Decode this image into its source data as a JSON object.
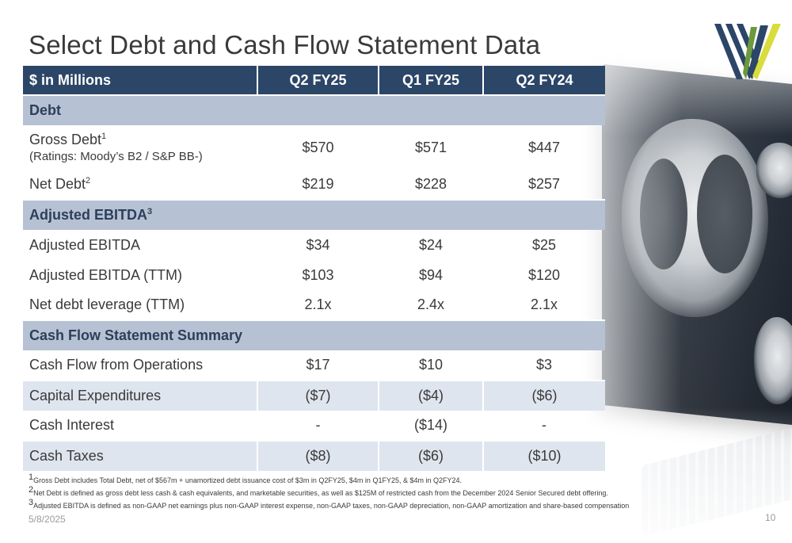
{
  "title": "Select Debt and Cash Flow Statement Data",
  "table": {
    "headers": [
      "$ in Millions",
      "Q2 FY25",
      "Q1 FY25",
      "Q2 FY24"
    ],
    "sections": {
      "debt": "Debt",
      "ebitda": "Adjusted EBITDA",
      "ebitda_sup": "3",
      "cashflow": "Cash Flow Statement Summary"
    },
    "rows": {
      "gross_debt": {
        "label": "Gross Debt",
        "sup": "1",
        "sublabel": "(Ratings: Moody’s B2 / S&P BB-)",
        "values": [
          "$570",
          "$571",
          "$447"
        ]
      },
      "net_debt": {
        "label": "Net Debt",
        "sup": "2",
        "values": [
          "$219",
          "$228",
          "$257"
        ]
      },
      "adj_ebitda": {
        "label": "Adjusted EBITDA",
        "values": [
          "$34",
          "$24",
          "$25"
        ]
      },
      "adj_ebitda_ttm": {
        "label": "Adjusted EBITDA (TTM)",
        "values": [
          "$103",
          "$94",
          "$120"
        ]
      },
      "net_leverage": {
        "label": "Net debt leverage (TTM)",
        "values": [
          "2.1x",
          "2.4x",
          "2.1x"
        ]
      },
      "cfo": {
        "label": "Cash Flow from Operations",
        "values": [
          "$17",
          "$10",
          "$3"
        ]
      },
      "capex": {
        "label": "Capital Expenditures",
        "values": [
          "($7)",
          "($4)",
          "($6)"
        ]
      },
      "cash_interest": {
        "label": "Cash Interest",
        "values": [
          "-",
          "($14)",
          "-"
        ]
      },
      "cash_taxes": {
        "label": "Cash Taxes",
        "values": [
          "($8)",
          "($6)",
          "($10)"
        ]
      }
    }
  },
  "footnotes": [
    {
      "num": "1",
      "text": "Gross Debt includes Total Debt, net of $567m + unamortized debt issuance cost of $3m in Q2FY25, $4m in Q1FY25, & $4m in Q2FY24."
    },
    {
      "num": "2",
      "text": "Net Debt is defined as gross debt less cash & cash equivalents, and marketable securities, as well as $125M of restricted cash from the December 2024 Senior Secured debt offering."
    },
    {
      "num": "3",
      "text": "Adjusted EBITDA is defined as non-GAAP net earnings plus non-GAAP interest expense, non-GAAP taxes, non-GAAP depreciation, non-GAAP amortization and share-based compensation"
    }
  ],
  "date": "5/8/2025",
  "page_number": "10",
  "colors": {
    "header": "#2c4668",
    "section": "#b6c2d3",
    "shade": "#dfe5ee",
    "logo_navy": "#2c4668",
    "logo_green": "#6a9a3c",
    "logo_yellow": "#d9dc3a"
  },
  "icons": {
    "logo": "company-w-logo"
  }
}
